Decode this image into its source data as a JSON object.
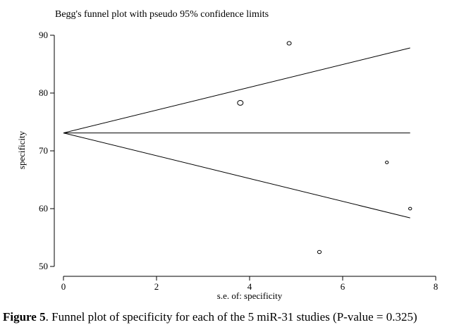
{
  "chart_data": {
    "type": "scatter",
    "title": "Begg's funnel plot with pseudo 95% confidence limits",
    "xlabel": "s.e. of: specificity",
    "ylabel": "specificity",
    "xlim": [
      0,
      8
    ],
    "ylim": [
      50,
      90
    ],
    "xticks": [
      "0",
      "2",
      "4",
      "6",
      "8"
    ],
    "yticks": [
      "50",
      "60",
      "70",
      "80",
      "90"
    ],
    "points": [
      {
        "x": 3.8,
        "y": 78.3
      },
      {
        "x": 4.85,
        "y": 88.6
      },
      {
        "x": 5.5,
        "y": 52.5
      },
      {
        "x": 6.95,
        "y": 68.0
      },
      {
        "x": 7.45,
        "y": 60.0
      }
    ],
    "pooled_estimate": 73.1,
    "funnel_upper_end": 87.8,
    "funnel_lower_end": 58.4,
    "funnel_x_end": 7.45
  },
  "caption": {
    "label": "Figure 5",
    "text": ". Funnel plot of specificity for each of the 5 miR-31 studies (P-value = 0.325)"
  }
}
